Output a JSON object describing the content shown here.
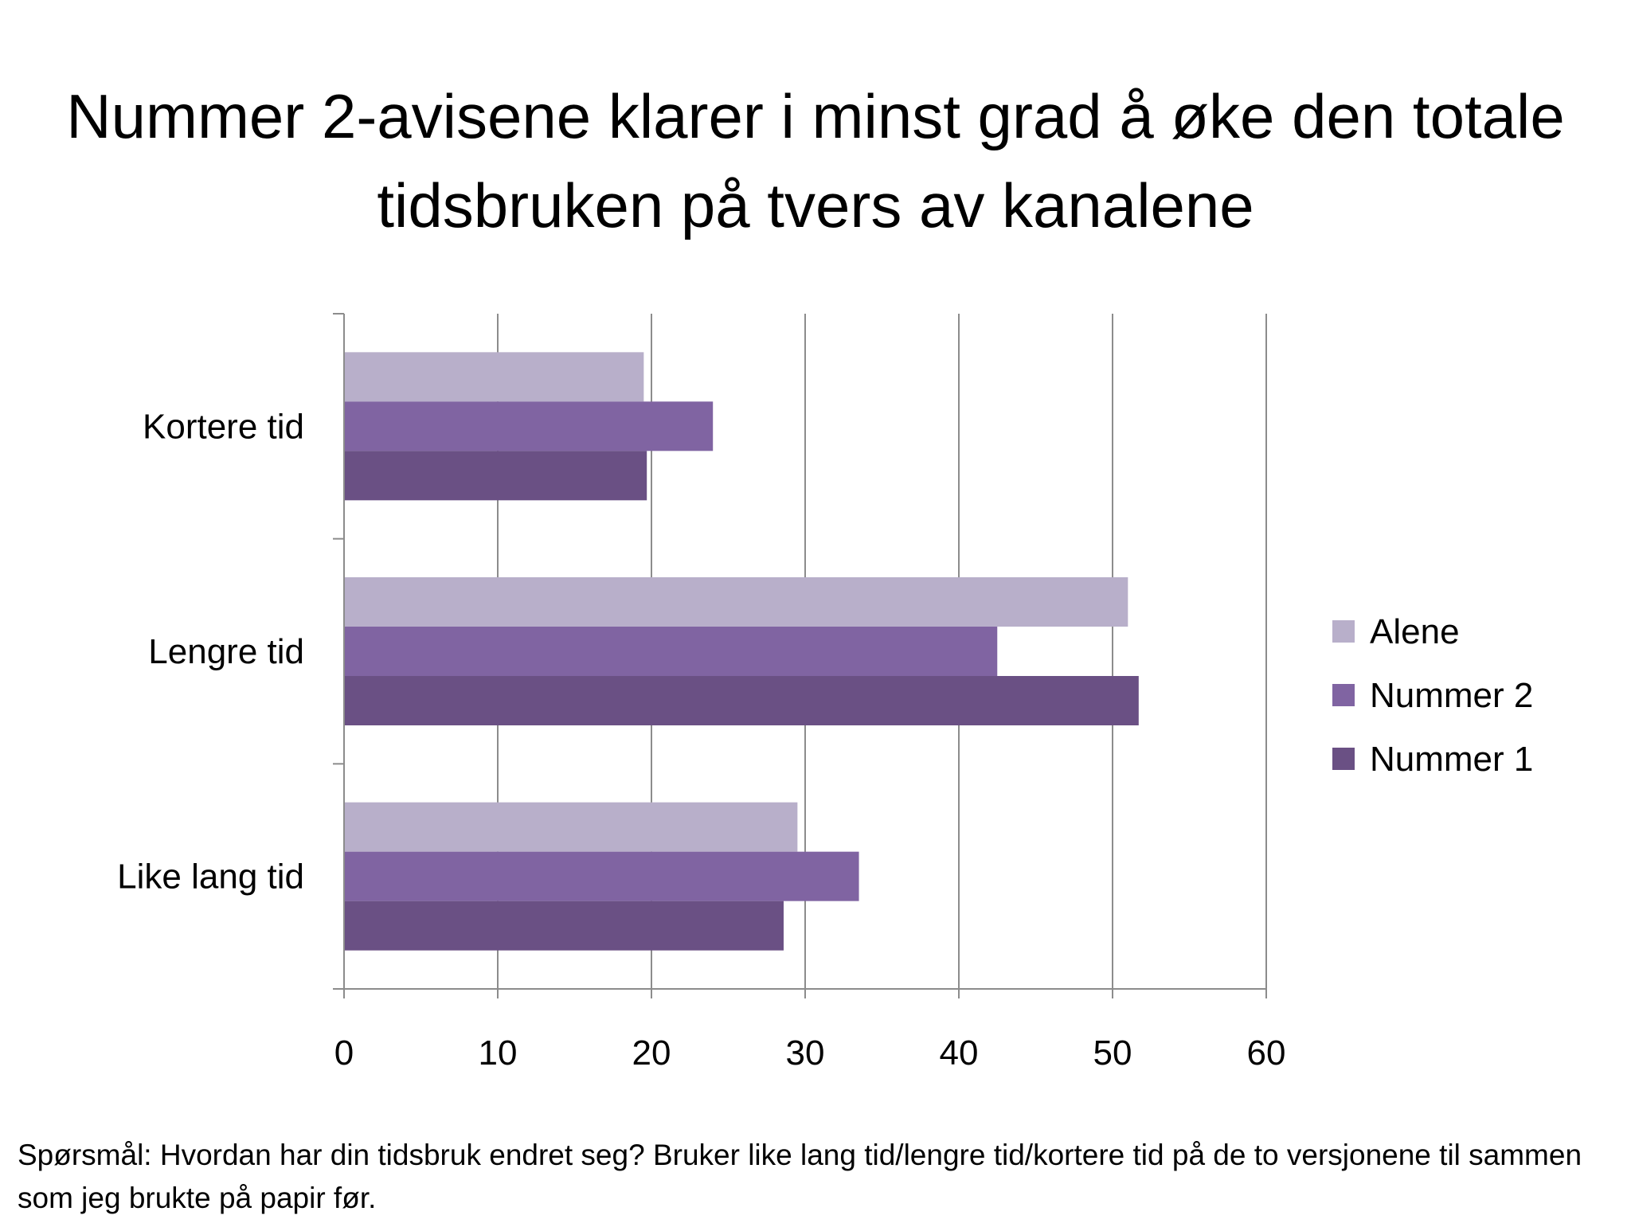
{
  "slide": {
    "title": "Nummer 2-avisene klarer i minst grad å øke den totale tidsbruken på tvers av kanalene",
    "footnote": "Spørsmål: Hvordan har din tidsbruk endret seg? Bruker like lang tid/lengre tid/kortere tid på de to versjonene til sammen som jeg brukte på papir før."
  },
  "chart_data": {
    "type": "bar",
    "orientation": "horizontal",
    "categories": [
      "Kortere tid",
      "Lengre tid",
      "Like lang tid"
    ],
    "series": [
      {
        "name": "Alene",
        "color": "#b8afca",
        "values": [
          19.5,
          51,
          29.5
        ]
      },
      {
        "name": "Nummer 2",
        "color": "#8064a2",
        "values": [
          24,
          42.5,
          33.5
        ]
      },
      {
        "name": "Nummer 1",
        "color": "#6a5084",
        "values": [
          19.7,
          51.7,
          28.6
        ]
      }
    ],
    "xlim": [
      0,
      60
    ],
    "xticks": [
      0,
      10,
      20,
      30,
      40,
      50,
      60
    ],
    "xtick_labels": [
      "0",
      "10",
      "20",
      "30",
      "40",
      "50",
      "60"
    ],
    "grid": "vertical",
    "legend": "right"
  }
}
